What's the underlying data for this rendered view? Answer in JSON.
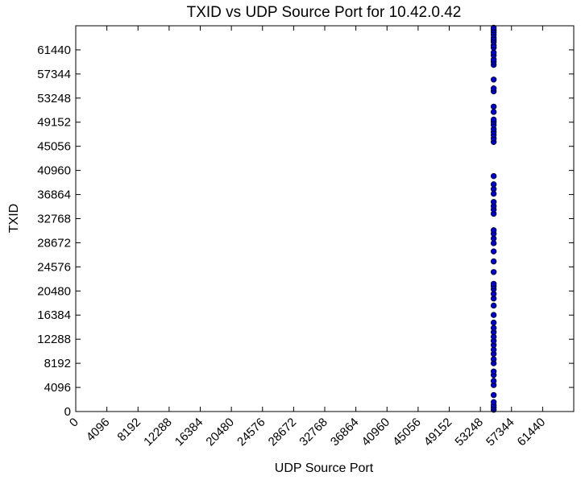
{
  "chart_data": {
    "type": "scatter",
    "title": "TXID vs UDP Source Port for 10.42.0.42",
    "xlabel": "UDP Source Port",
    "ylabel": "TXID",
    "xlim": [
      0,
      65535
    ],
    "ylim": [
      0,
      65535
    ],
    "xticks": [
      0,
      4096,
      8192,
      12288,
      16384,
      20480,
      24576,
      28672,
      32768,
      36864,
      40960,
      45056,
      49152,
      53248,
      57344,
      61440
    ],
    "yticks": [
      0,
      4096,
      8192,
      12288,
      16384,
      20480,
      24576,
      28672,
      32768,
      36864,
      40960,
      45056,
      49152,
      53248,
      57344,
      61440
    ],
    "x_tick_rotation_deg": -45,
    "grid": false,
    "legend": "none",
    "marker": {
      "shape": "circle",
      "fill": "#0000bf",
      "edge": "#000000"
    },
    "series": [
      {
        "x": [
          55000,
          55000,
          55000,
          55000,
          55000,
          55000,
          55000,
          55000,
          55000,
          55000,
          55000,
          55000,
          55000,
          55000,
          55000,
          55000,
          55000,
          55000,
          55000,
          55000,
          55000,
          55000,
          55000,
          55000,
          55000,
          55000,
          55000,
          55000,
          55000,
          55000,
          55000,
          55000,
          55000,
          55000,
          55000,
          55000,
          55000,
          55000,
          55000,
          55000,
          55000,
          55000,
          55000,
          55000,
          55000,
          55000,
          55000,
          55000,
          55000,
          55000,
          55000,
          55000,
          55000,
          55000,
          55000,
          55000,
          55000,
          55000,
          55000,
          55000,
          55000,
          55000,
          55000,
          55000,
          55000,
          55000,
          55000,
          55000
        ],
        "y": [
          300,
          700,
          1100,
          1600,
          2800,
          4500,
          5200,
          6200,
          6800,
          8200,
          8900,
          9800,
          10500,
          11300,
          12000,
          12700,
          13500,
          14200,
          15100,
          16400,
          18000,
          19200,
          20000,
          20800,
          21300,
          21700,
          23700,
          25500,
          27200,
          28600,
          29400,
          30200,
          30800,
          33600,
          34300,
          34900,
          35600,
          37000,
          37800,
          38600,
          40000,
          45800,
          46400,
          47000,
          47500,
          48000,
          48700,
          49200,
          49600,
          50900,
          51800,
          54400,
          54900,
          56400,
          58900,
          59400,
          59800,
          60500,
          61000,
          61800,
          62200,
          62800,
          63100,
          63500,
          64000,
          64400,
          64800,
          65200
        ]
      }
    ]
  }
}
